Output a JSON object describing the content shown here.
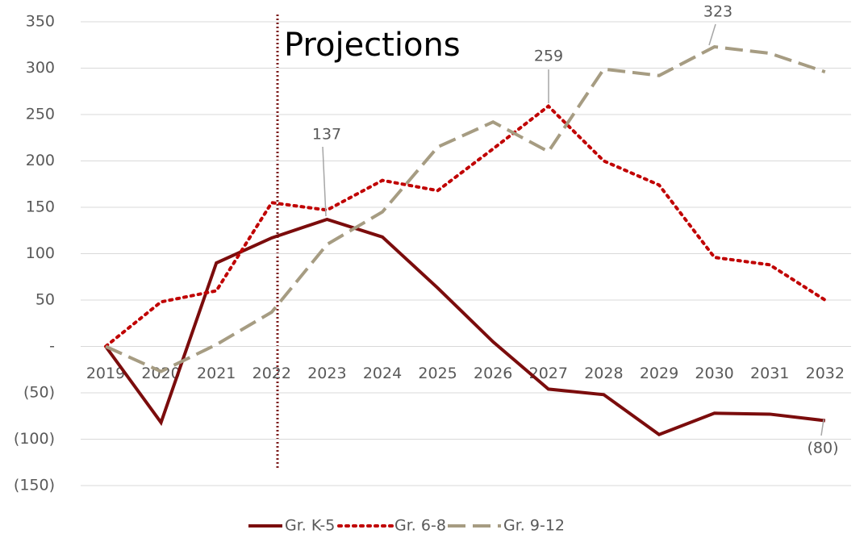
{
  "chart_data": {
    "type": "line",
    "annotation": "Projections",
    "categories": [
      "2019",
      "2020",
      "2021",
      "2022",
      "2023",
      "2024",
      "2025",
      "2026",
      "2027",
      "2028",
      "2029",
      "2030",
      "2031",
      "2032"
    ],
    "ylim": [
      -150,
      350
    ],
    "yticks": [
      {
        "value": -150,
        "label": "(150)"
      },
      {
        "value": -100,
        "label": "(100)"
      },
      {
        "value": -50,
        "label": "(50)"
      },
      {
        "value": 0,
        "label": "-"
      },
      50,
      100,
      150,
      200,
      250,
      300,
      350
    ],
    "grid": true,
    "legend": "bottom",
    "series": [
      {
        "name": "Gr. K-5",
        "color": "#7b0c0c",
        "style": "solid",
        "values": [
          0,
          -82,
          90,
          117,
          137,
          118,
          63,
          5,
          -46,
          -52,
          -95,
          -72,
          -73,
          -80
        ],
        "value_labels": [
          null,
          null,
          null,
          null,
          "137",
          null,
          null,
          null,
          null,
          null,
          null,
          null,
          null,
          "(80)"
        ]
      },
      {
        "name": "Gr. 6-8",
        "color": "#c00000",
        "style": "dotted",
        "values": [
          0,
          48,
          60,
          155,
          147,
          179,
          168,
          213,
          259,
          200,
          174,
          96,
          88,
          50
        ],
        "value_labels": [
          null,
          null,
          null,
          null,
          null,
          null,
          null,
          null,
          "259",
          null,
          null,
          null,
          null,
          null
        ]
      },
      {
        "name": "Gr. 9-12",
        "color": "#a69c82",
        "style": "dashed",
        "values": [
          0,
          -27,
          2,
          37,
          110,
          145,
          215,
          242,
          210,
          299,
          292,
          323,
          316,
          296
        ],
        "value_labels": [
          null,
          null,
          null,
          null,
          null,
          null,
          null,
          null,
          null,
          null,
          null,
          "323",
          null,
          null
        ]
      }
    ]
  }
}
